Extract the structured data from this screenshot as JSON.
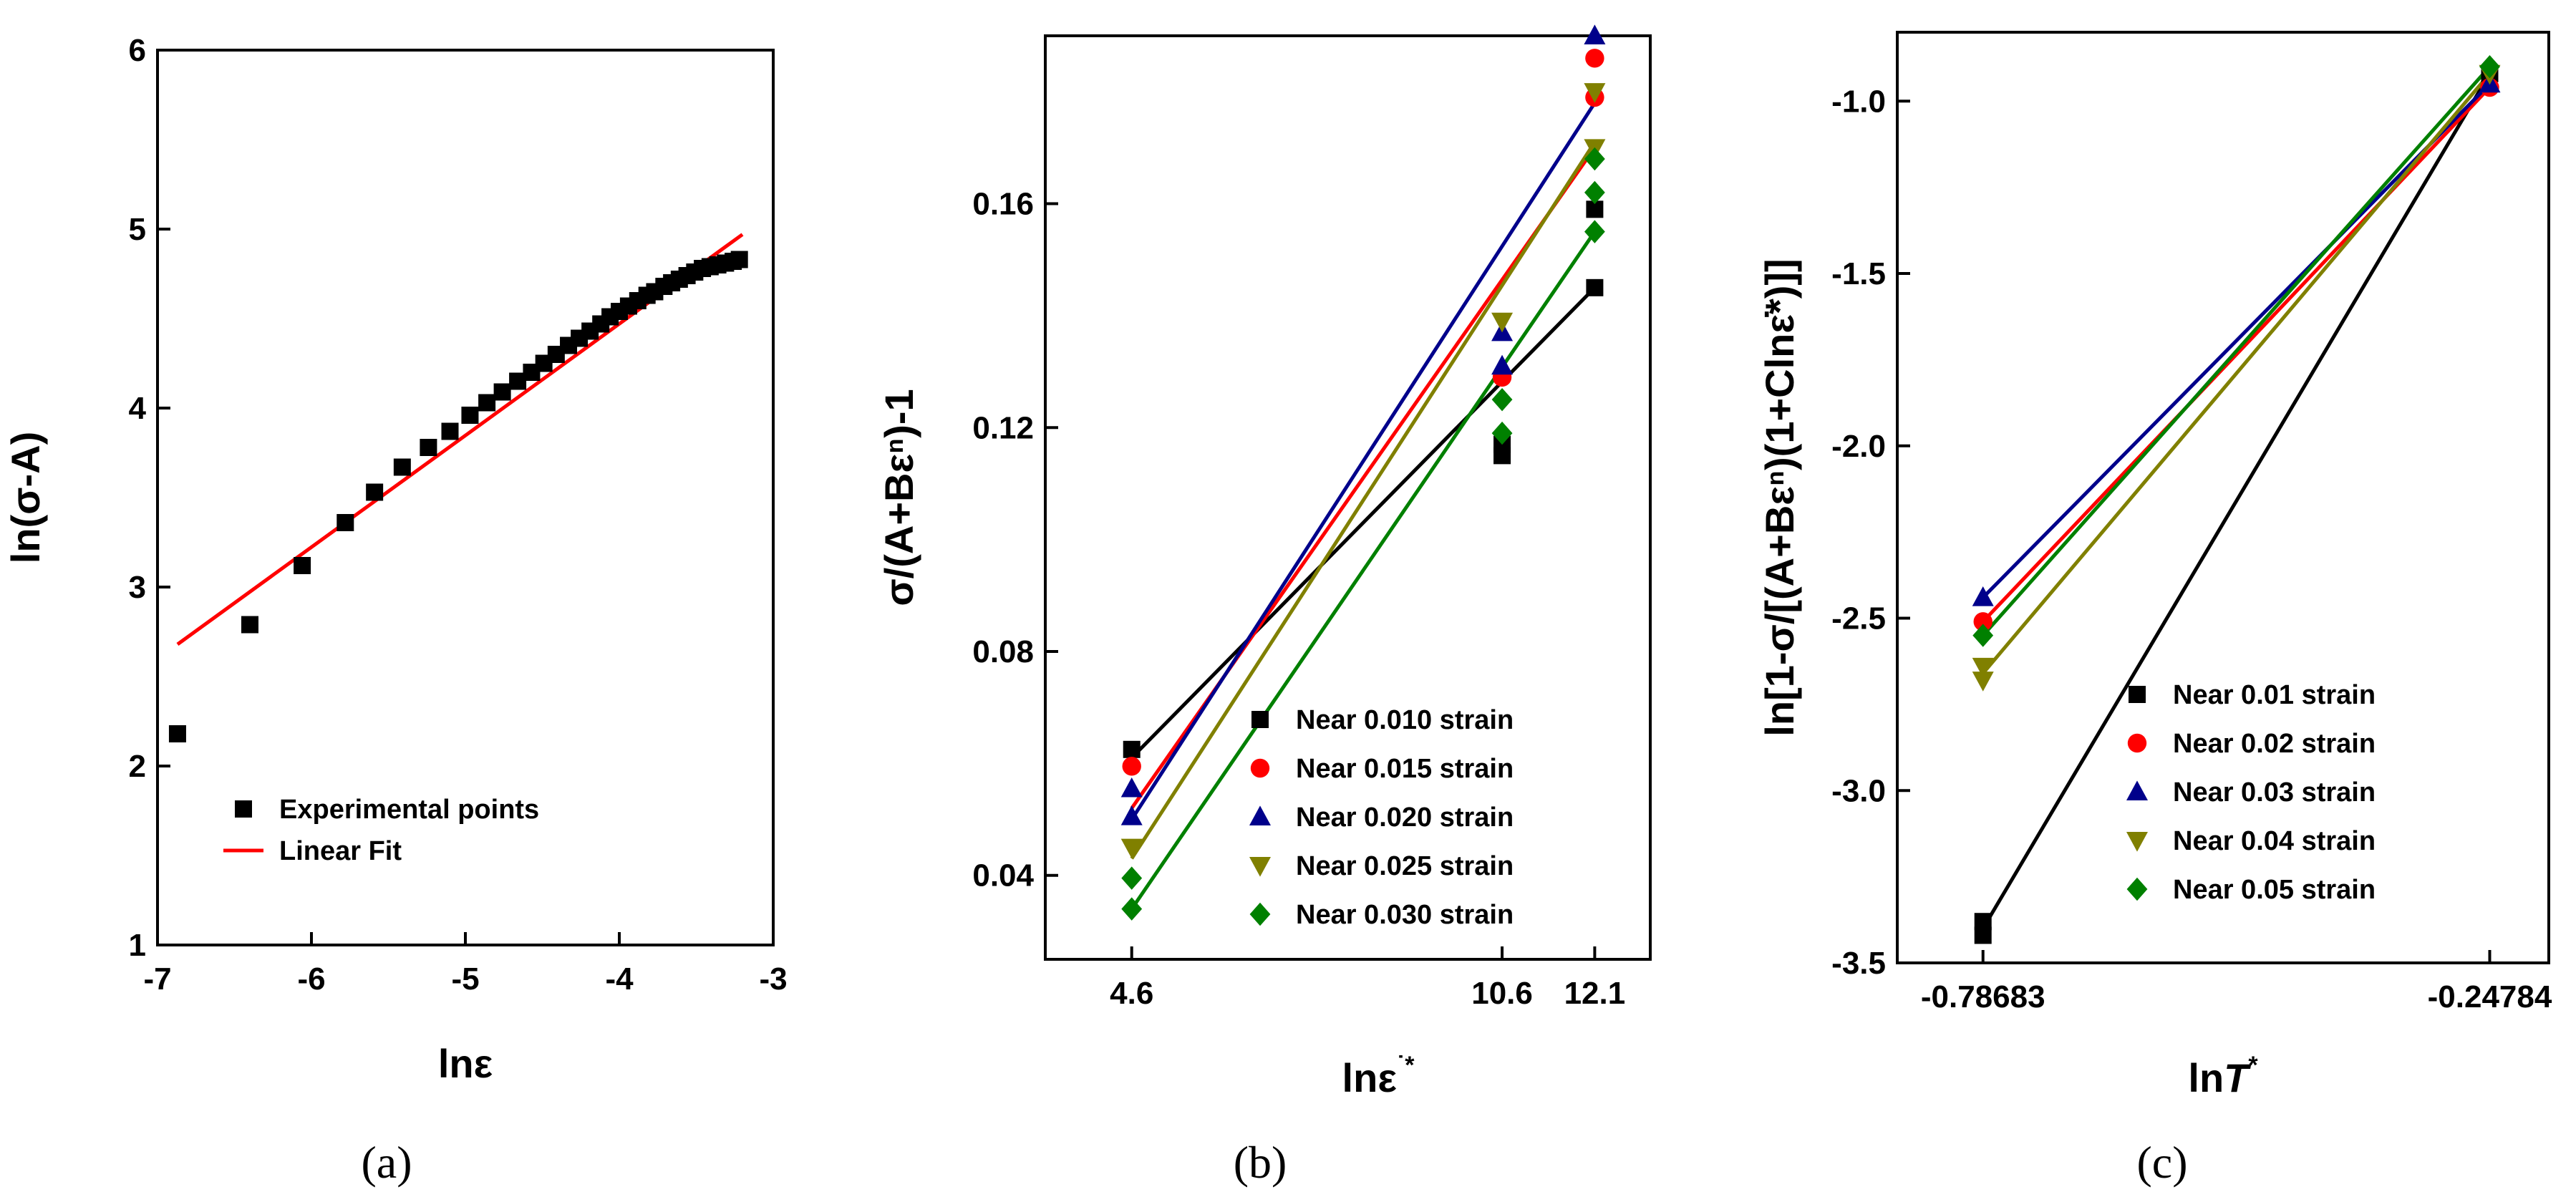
{
  "chart_data": [
    {
      "type": "scatter",
      "panel_label": "(a)",
      "xlabel": "lnε",
      "ylabel": "ln(σ-A)",
      "xlim": [
        -7,
        -3
      ],
      "ylim": [
        1,
        6
      ],
      "xticks": [
        "-7",
        "-6",
        "-5",
        "-4",
        "-3"
      ],
      "yticks": [
        "1",
        "2",
        "3",
        "4",
        "5",
        "6"
      ],
      "series": [
        {
          "name": "Experimental points",
          "color": "#000000",
          "marker": "square",
          "x": [
            -6.87,
            -6.4,
            -6.06,
            -5.78,
            -5.59,
            -5.41,
            -5.24,
            -5.1,
            -4.97,
            -4.86,
            -4.76,
            -4.66,
            -4.57,
            -4.49,
            -4.41,
            -4.33,
            -4.26,
            -4.19,
            -4.12,
            -4.06,
            -4.0,
            -3.94,
            -3.88,
            -3.82,
            -3.77,
            -3.71,
            -3.66,
            -3.61,
            -3.56,
            -3.51,
            -3.46,
            -3.41,
            -3.36,
            -3.31,
            -3.26,
            -3.22
          ],
          "y": [
            2.18,
            2.79,
            3.12,
            3.36,
            3.53,
            3.67,
            3.78,
            3.87,
            3.96,
            4.03,
            4.09,
            4.15,
            4.2,
            4.25,
            4.3,
            4.35,
            4.39,
            4.43,
            4.47,
            4.51,
            4.54,
            4.57,
            4.6,
            4.63,
            4.65,
            4.68,
            4.7,
            4.72,
            4.74,
            4.76,
            4.78,
            4.79,
            4.8,
            4.81,
            4.82,
            4.83
          ]
        },
        {
          "name": "Linear Fit",
          "color": "#ff0000",
          "type": "line",
          "x": [
            -6.87,
            -3.2
          ],
          "y": [
            2.68,
            4.97
          ]
        }
      ],
      "legend_position": "bottom-right"
    },
    {
      "type": "scatter",
      "panel_label": "(b)",
      "xlabel": "lnε̇*",
      "ylabel": "σ/(A+Bεⁿ)-1",
      "xlim": [
        3.2,
        13.0
      ],
      "ylim": [
        0.025,
        0.19
      ],
      "xticks": [
        "4.6",
        "10.6",
        "12.1"
      ],
      "xtick_values": [
        4.6,
        10.6,
        12.1
      ],
      "yticks": [
        "0.04",
        "0.08",
        "0.12",
        "0.16"
      ],
      "ytick_values": [
        0.04,
        0.08,
        0.12,
        0.16
      ],
      "series": [
        {
          "name": "Near 0.010 strain",
          "color": "#000000",
          "marker": "square",
          "x": [
            4.6,
            10.6,
            10.6,
            12.1,
            12.1
          ],
          "y": [
            0.0625,
            0.115,
            0.117,
            0.145,
            0.159
          ],
          "fit": [
            [
              4.6,
              0.061
            ],
            [
              12.1,
              0.145
            ]
          ]
        },
        {
          "name": "Near 0.015 strain",
          "color": "#ff0000",
          "marker": "circle",
          "x": [
            4.6,
            10.6,
            12.1,
            12.1
          ],
          "y": [
            0.0595,
            0.129,
            0.179,
            0.186
          ],
          "fit": [
            [
              4.6,
              0.052
            ],
            [
              12.1,
              0.17
            ]
          ]
        },
        {
          "name": "Near 0.020 strain",
          "color": "#00008b",
          "marker": "triangle-up",
          "x": [
            4.6,
            4.6,
            10.6,
            10.6,
            12.1
          ],
          "y": [
            0.0555,
            0.0505,
            0.131,
            0.137,
            0.19
          ],
          "fit": [
            [
              4.6,
              0.05
            ],
            [
              12.1,
              0.178
            ]
          ]
        },
        {
          "name": "Near 0.025 strain",
          "color": "#808000",
          "marker": "triangle-down",
          "x": [
            4.6,
            10.6,
            12.1,
            12.1
          ],
          "y": [
            0.045,
            0.139,
            0.18,
            0.17
          ],
          "fit": [
            [
              4.6,
              0.043
            ],
            [
              12.1,
              0.171
            ]
          ]
        },
        {
          "name": "Near 0.030 strain",
          "color": "#008000",
          "marker": "diamond",
          "x": [
            4.6,
            4.6,
            10.6,
            10.6,
            12.1,
            12.1,
            12.1
          ],
          "y": [
            0.0395,
            0.034,
            0.125,
            0.119,
            0.168,
            0.162,
            0.155
          ],
          "fit": [
            [
              4.6,
              0.034
            ],
            [
              12.1,
              0.155
            ]
          ]
        }
      ],
      "legend_position": "bottom-right"
    },
    {
      "type": "scatter",
      "panel_label": "(c)",
      "xlabel": "lnT*",
      "ylabel": "ln[1-σ/[(A+Bεⁿ)(1+Clnε̇*)]]",
      "xlim": [
        -0.878,
        -0.185
      ],
      "ylim": [
        -3.5,
        -0.8
      ],
      "xticks": [
        "-0.78683",
        "-0.24784"
      ],
      "xtick_values": [
        -0.78683,
        -0.24784
      ],
      "yticks": [
        "-3.5",
        "-3.0",
        "-2.5",
        "-2.0",
        "-1.5",
        "-1.0"
      ],
      "ytick_values": [
        -3.5,
        -3.0,
        -2.5,
        -2.0,
        -1.5,
        -1.0
      ],
      "series": [
        {
          "name": "Near 0.01 strain",
          "color": "#000000",
          "marker": "square",
          "x": [
            -0.78683,
            -0.78683,
            -0.24784
          ],
          "y": [
            -3.42,
            -3.38,
            -0.92
          ],
          "fit": [
            [
              -0.78683,
              -3.4
            ],
            [
              -0.24784,
              -0.92
            ]
          ]
        },
        {
          "name": "Near 0.02 strain",
          "color": "#ff0000",
          "marker": "circle",
          "x": [
            -0.78683,
            -0.24784
          ],
          "y": [
            -2.51,
            -0.96
          ],
          "fit": [
            [
              -0.78683,
              -2.51
            ],
            [
              -0.24784,
              -0.96
            ]
          ]
        },
        {
          "name": "Near 0.03 strain",
          "color": "#00008b",
          "marker": "triangle-up",
          "x": [
            -0.78683,
            -0.24784
          ],
          "y": [
            -2.44,
            -0.95
          ],
          "fit": [
            [
              -0.78683,
              -2.44
            ],
            [
              -0.24784,
              -0.95
            ]
          ]
        },
        {
          "name": "Near 0.04 strain",
          "color": "#808000",
          "marker": "triangle-down",
          "x": [
            -0.78683,
            -0.78683,
            -0.24784
          ],
          "y": [
            -2.64,
            -2.68,
            -0.92
          ],
          "fit": [
            [
              -0.78683,
              -2.66
            ],
            [
              -0.24784,
              -0.92
            ]
          ]
        },
        {
          "name": "Near 0.05 strain",
          "color": "#008000",
          "marker": "diamond",
          "x": [
            -0.78683,
            -0.24784
          ],
          "y": [
            -2.55,
            -0.9
          ],
          "fit": [
            [
              -0.78683,
              -2.55
            ],
            [
              -0.24784,
              -0.9
            ]
          ]
        }
      ],
      "legend_position": "bottom-right"
    }
  ]
}
